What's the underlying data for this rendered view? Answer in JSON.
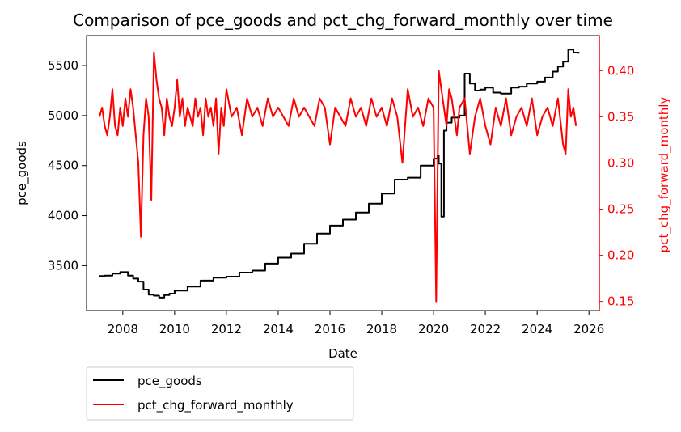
{
  "chart_data": {
    "type": "line",
    "title": "Comparison of pce_goods and pct_chg_forward_monthly over time",
    "xlabel": "Date",
    "ylabel_left": "pce_goods",
    "ylabel_right": "pct_chg_forward_monthly",
    "xlim": [
      2006.6,
      2026.4
    ],
    "ylim_left": [
      3050,
      5800
    ],
    "ylim_right": [
      0.14,
      0.438
    ],
    "x_ticks": [
      2008,
      2010,
      2012,
      2014,
      2016,
      2018,
      2020,
      2022,
      2024,
      2026
    ],
    "x_tick_labels": [
      "2008",
      "2010",
      "2012",
      "2014",
      "2016",
      "2018",
      "2020",
      "2022",
      "2024",
      "2026"
    ],
    "y_ticks_left": [
      3500,
      4000,
      4500,
      5000,
      5500
    ],
    "y_tick_labels_left": [
      "3500",
      "4000",
      "4500",
      "5000",
      "5500"
    ],
    "y_ticks_right": [
      0.15,
      0.2,
      0.25,
      0.3,
      0.35,
      0.4
    ],
    "y_tick_labels_right": [
      "0.15",
      "0.20",
      "0.25",
      "0.30",
      "0.35",
      "0.40"
    ],
    "grid": false,
    "legend_position": "below-left",
    "series": [
      {
        "name": "pce_goods",
        "axis": "left",
        "color": "#000000",
        "x": [
          2007.1,
          2007.3,
          2007.6,
          2007.9,
          2008.2,
          2008.4,
          2008.6,
          2008.8,
          2009.0,
          2009.2,
          2009.4,
          2009.6,
          2009.8,
          2010.0,
          2010.5,
          2011.0,
          2011.5,
          2012.0,
          2012.5,
          2013.0,
          2013.5,
          2014.0,
          2014.5,
          2015.0,
          2015.5,
          2016.0,
          2016.5,
          2017.0,
          2017.5,
          2018.0,
          2018.5,
          2019.0,
          2019.5,
          2020.0,
          2020.15,
          2020.2,
          2020.3,
          2020.4,
          2020.5,
          2020.7,
          2021.0,
          2021.2,
          2021.4,
          2021.6,
          2021.8,
          2022.0,
          2022.3,
          2022.6,
          2023.0,
          2023.3,
          2023.6,
          2024.0,
          2024.3,
          2024.6,
          2024.8,
          2025.0,
          2025.2,
          2025.4,
          2025.6
        ],
        "y": [
          3395,
          3400,
          3420,
          3435,
          3400,
          3370,
          3340,
          3260,
          3210,
          3200,
          3180,
          3205,
          3220,
          3250,
          3290,
          3350,
          3380,
          3390,
          3430,
          3450,
          3520,
          3580,
          3620,
          3720,
          3820,
          3900,
          3960,
          4030,
          4120,
          4220,
          4360,
          4380,
          4500,
          4570,
          4600,
          4520,
          3990,
          4850,
          4930,
          4980,
          5000,
          5420,
          5320,
          5250,
          5260,
          5280,
          5230,
          5220,
          5280,
          5290,
          5320,
          5340,
          5380,
          5440,
          5490,
          5540,
          5660,
          5630,
          5620
        ]
      },
      {
        "name": "pct_chg_forward_monthly",
        "axis": "right",
        "color": "#ff0000",
        "x": [
          2007.1,
          2007.2,
          2007.3,
          2007.4,
          2007.5,
          2007.6,
          2007.7,
          2007.8,
          2007.9,
          2008.0,
          2008.1,
          2008.2,
          2008.3,
          2008.4,
          2008.5,
          2008.6,
          2008.7,
          2008.8,
          2008.9,
          2009.0,
          2009.1,
          2009.2,
          2009.3,
          2009.4,
          2009.5,
          2009.6,
          2009.7,
          2009.8,
          2009.9,
          2010.0,
          2010.1,
          2010.2,
          2010.3,
          2010.4,
          2010.5,
          2010.6,
          2010.7,
          2010.8,
          2010.9,
          2011.0,
          2011.1,
          2011.2,
          2011.3,
          2011.4,
          2011.5,
          2011.6,
          2011.7,
          2011.8,
          2011.9,
          2012.0,
          2012.2,
          2012.4,
          2012.6,
          2012.8,
          2013.0,
          2013.2,
          2013.4,
          2013.6,
          2013.8,
          2014.0,
          2014.2,
          2014.4,
          2014.6,
          2014.8,
          2015.0,
          2015.2,
          2015.4,
          2015.6,
          2015.8,
          2016.0,
          2016.2,
          2016.4,
          2016.6,
          2016.8,
          2017.0,
          2017.2,
          2017.4,
          2017.6,
          2017.8,
          2018.0,
          2018.2,
          2018.4,
          2018.6,
          2018.8,
          2019.0,
          2019.2,
          2019.4,
          2019.6,
          2019.8,
          2020.0,
          2020.1,
          2020.2,
          2020.3,
          2020.4,
          2020.5,
          2020.6,
          2020.7,
          2020.8,
          2020.9,
          2021.0,
          2021.2,
          2021.4,
          2021.6,
          2021.8,
          2022.0,
          2022.2,
          2022.4,
          2022.6,
          2022.8,
          2023.0,
          2023.2,
          2023.4,
          2023.6,
          2023.8,
          2024.0,
          2024.2,
          2024.4,
          2024.6,
          2024.8,
          2025.0,
          2025.1,
          2025.2,
          2025.3,
          2025.4,
          2025.5
        ],
        "y": [
          0.35,
          0.36,
          0.34,
          0.33,
          0.35,
          0.38,
          0.34,
          0.33,
          0.36,
          0.34,
          0.37,
          0.35,
          0.38,
          0.36,
          0.33,
          0.3,
          0.22,
          0.33,
          0.37,
          0.35,
          0.26,
          0.42,
          0.39,
          0.37,
          0.36,
          0.33,
          0.37,
          0.35,
          0.34,
          0.36,
          0.39,
          0.35,
          0.37,
          0.34,
          0.36,
          0.35,
          0.34,
          0.37,
          0.35,
          0.36,
          0.33,
          0.37,
          0.35,
          0.36,
          0.34,
          0.37,
          0.31,
          0.36,
          0.34,
          0.38,
          0.35,
          0.36,
          0.33,
          0.37,
          0.35,
          0.36,
          0.34,
          0.37,
          0.35,
          0.36,
          0.35,
          0.34,
          0.37,
          0.35,
          0.36,
          0.35,
          0.34,
          0.37,
          0.36,
          0.32,
          0.36,
          0.35,
          0.34,
          0.37,
          0.35,
          0.36,
          0.34,
          0.37,
          0.35,
          0.36,
          0.34,
          0.37,
          0.35,
          0.3,
          0.38,
          0.35,
          0.36,
          0.34,
          0.37,
          0.36,
          0.15,
          0.4,
          0.38,
          0.36,
          0.34,
          0.38,
          0.37,
          0.35,
          0.33,
          0.36,
          0.37,
          0.31,
          0.35,
          0.37,
          0.34,
          0.32,
          0.36,
          0.34,
          0.37,
          0.33,
          0.35,
          0.36,
          0.34,
          0.37,
          0.33,
          0.35,
          0.36,
          0.34,
          0.37,
          0.32,
          0.31,
          0.38,
          0.35,
          0.36,
          0.34
        ]
      }
    ]
  }
}
